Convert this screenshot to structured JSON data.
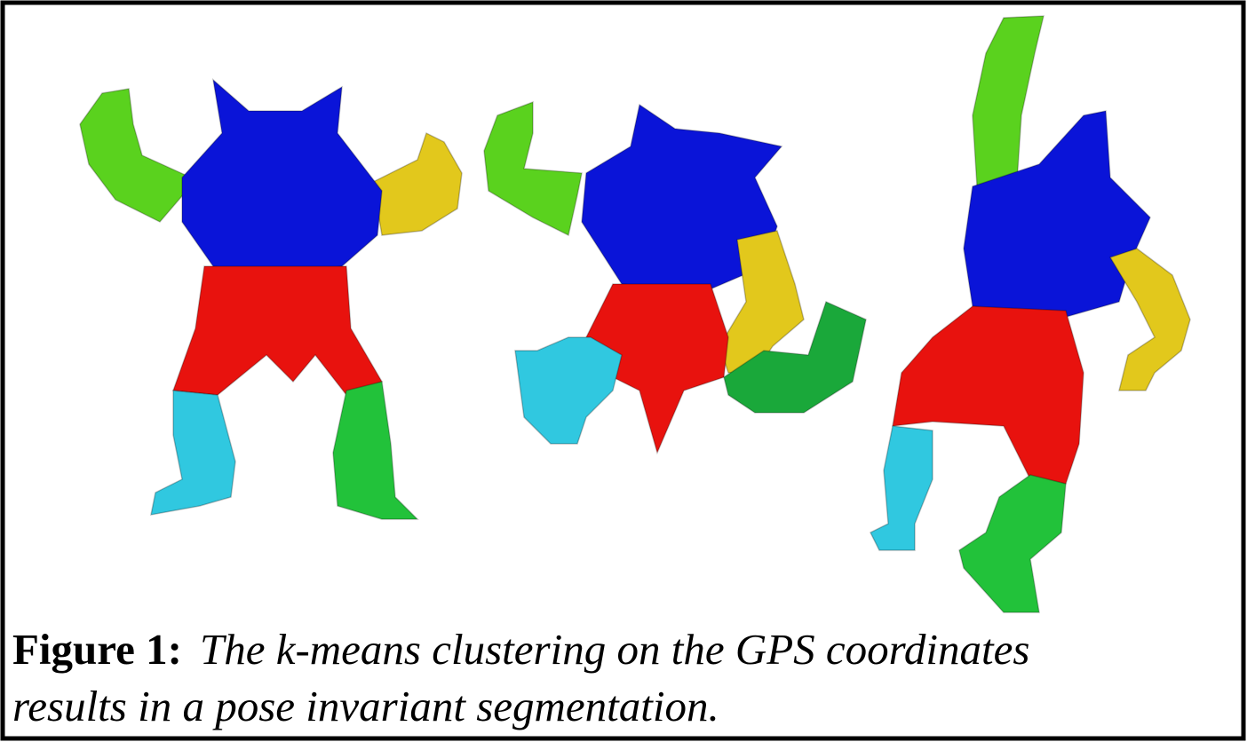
{
  "figure": {
    "label": "Figure 1:",
    "caption_lines": [
      "The k-means clustering on the GPS coordinates",
      "results in a pose invariant segmentation."
    ]
  }
}
